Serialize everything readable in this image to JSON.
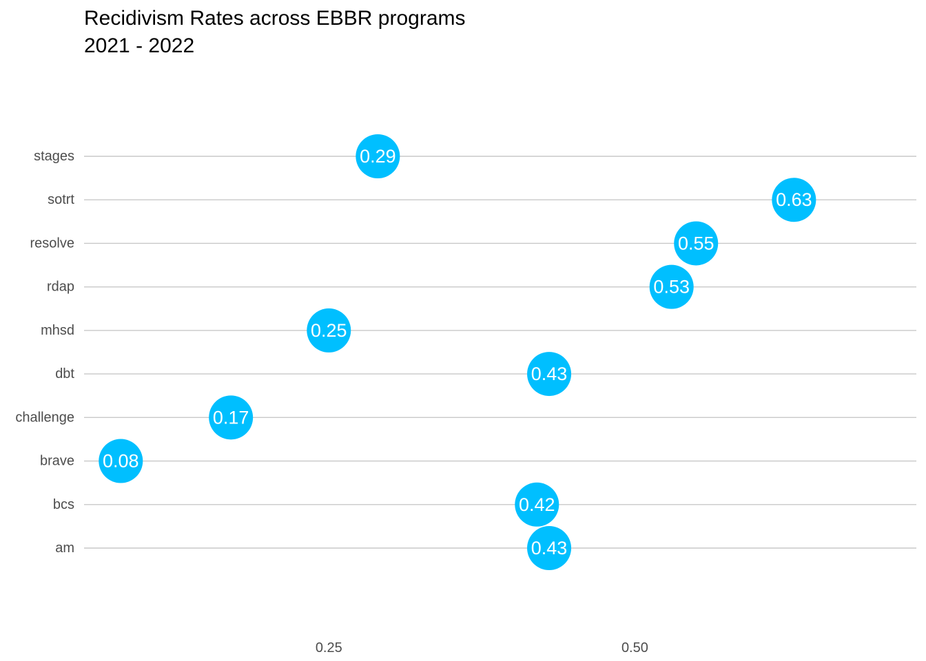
{
  "chart_data": {
    "type": "scatter",
    "title_lines": [
      "Recidivism Rates across EBBR programs",
      "2021 - 2022"
    ],
    "xlabel": "",
    "ylabel": "",
    "categories": [
      "am",
      "bcs",
      "brave",
      "challenge",
      "dbt",
      "mhsd",
      "rdap",
      "resolve",
      "sotrt",
      "stages"
    ],
    "values": [
      0.43,
      0.42,
      0.08,
      0.17,
      0.43,
      0.25,
      0.53,
      0.55,
      0.63,
      0.29
    ],
    "point_labels": [
      "0.43",
      "0.42",
      "0.08",
      "0.17",
      "0.43",
      "0.25",
      "0.53",
      "0.55",
      "0.63",
      "0.29"
    ],
    "x_ticks": [
      0.25,
      0.5
    ],
    "x_tick_labels": [
      "0.25",
      "0.50"
    ],
    "xlim": [
      0.05,
      0.73
    ],
    "grid": "horizontal",
    "colors": {
      "point": "#00bfff",
      "point_label": "#ffffff",
      "grid": "#c8c8c8",
      "axis_text": "#4d4d4d"
    }
  }
}
